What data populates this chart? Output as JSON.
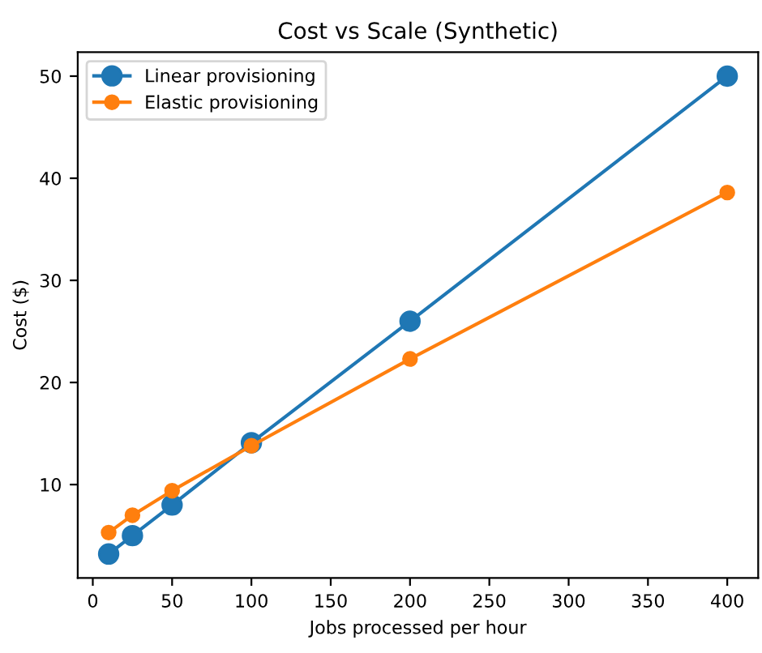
{
  "chart_data": {
    "type": "line",
    "title": "Cost vs Scale (Synthetic)",
    "xlabel": "Jobs processed per hour",
    "ylabel": "Cost ($)",
    "x": [
      10,
      25,
      50,
      100,
      200,
      400
    ],
    "series": [
      {
        "name": "Linear provisioning",
        "color": "#1f77b4",
        "values": [
          3.2,
          5.0,
          8.0,
          14.1,
          26.0,
          50.0
        ]
      },
      {
        "name": "Elastic provisioning",
        "color": "#ff7f0e",
        "values": [
          5.3,
          7.0,
          9.4,
          13.8,
          22.3,
          38.6
        ]
      }
    ],
    "xlim": [
      -9.5,
      419.5
    ],
    "ylim": [
      0.86,
      52.34
    ],
    "xticks": [
      0,
      50,
      100,
      150,
      200,
      250,
      300,
      350,
      400
    ],
    "yticks": [
      10,
      20,
      30,
      40,
      50
    ],
    "marker": "circle",
    "line_style": "solid",
    "legend": "top left",
    "grid": false
  }
}
